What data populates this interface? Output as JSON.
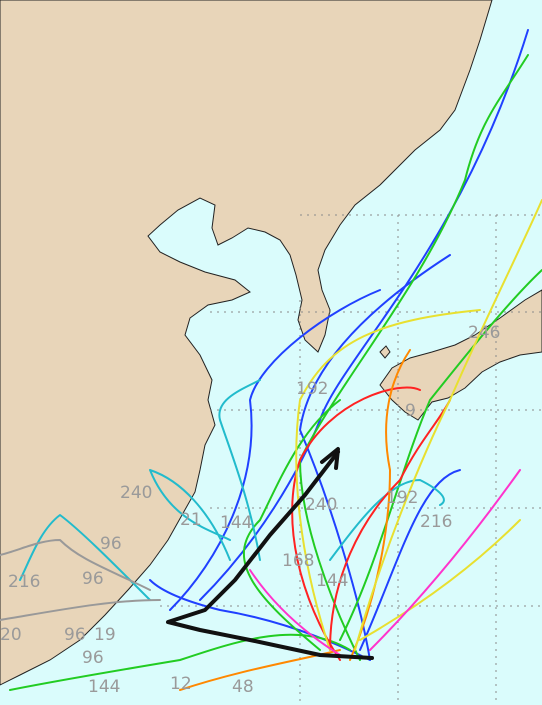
{
  "labels": [
    "246",
    "192",
    "9",
    "240",
    "21",
    "144",
    "240",
    "192",
    "216",
    "96",
    "216",
    "96",
    "168",
    "144",
    "20",
    "96",
    "19",
    "96",
    "144",
    "12",
    "48"
  ]
}
